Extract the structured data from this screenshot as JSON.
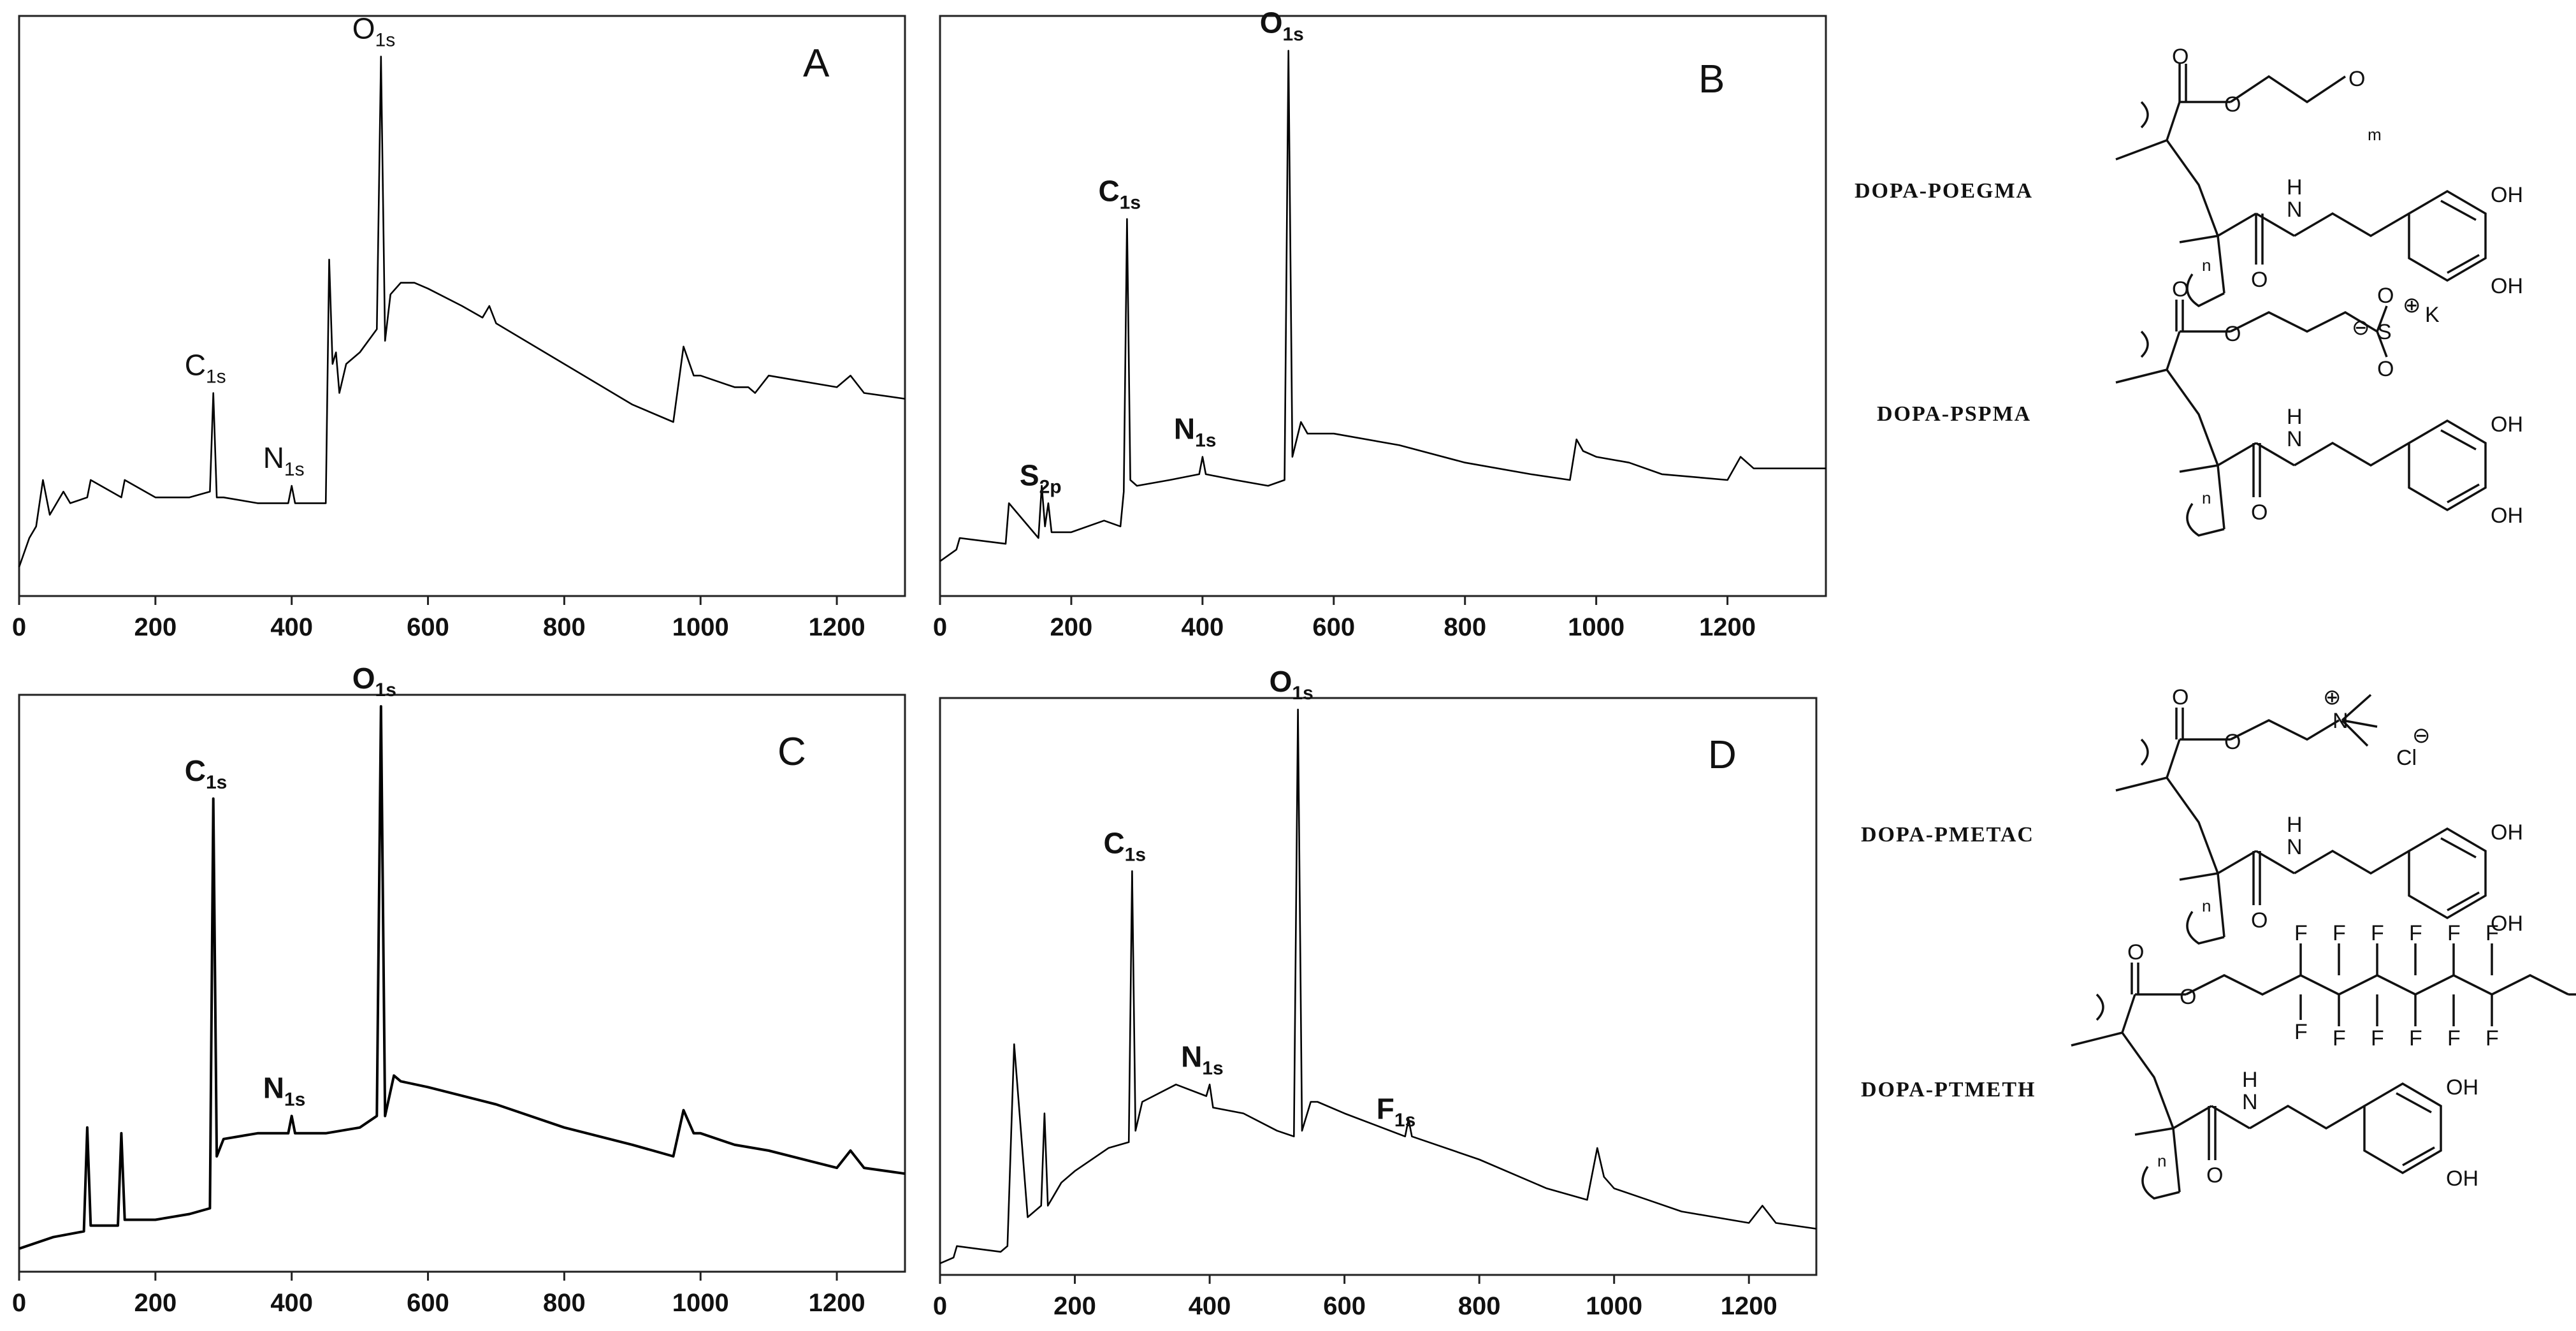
{
  "chart_data": [
    {
      "type": "line",
      "panel": "A",
      "title": "",
      "xlabel": "",
      "ylabel": "",
      "xlim": [
        0,
        1300
      ],
      "xticks": [
        0,
        200,
        400,
        600,
        800,
        1000,
        1200
      ],
      "grid": false,
      "annotations": [
        {
          "main": "C",
          "sub": "1s",
          "x": 285
        },
        {
          "main": "N",
          "sub": "1s",
          "x": 400
        },
        {
          "main": "O",
          "sub": "1s",
          "x": 531
        }
      ],
      "series": [
        {
          "name": "DOPA-POEGMA",
          "x": [
            0,
            15,
            25,
            35,
            45,
            55,
            65,
            75,
            100,
            105,
            150,
            155,
            200,
            250,
            280,
            285,
            290,
            300,
            350,
            395,
            400,
            405,
            450,
            455,
            460,
            465,
            470,
            480,
            500,
            525,
            531,
            537,
            545,
            560,
            580,
            600,
            650,
            680,
            690,
            700,
            800,
            900,
            960,
            975,
            990,
            1000,
            1050,
            1070,
            1080,
            1100,
            1150,
            1200,
            1220,
            1240,
            1300
          ],
          "y": [
            0.05,
            0.1,
            0.12,
            0.2,
            0.14,
            0.16,
            0.18,
            0.16,
            0.17,
            0.2,
            0.17,
            0.2,
            0.17,
            0.17,
            0.18,
            0.35,
            0.17,
            0.17,
            0.16,
            0.16,
            0.19,
            0.16,
            0.16,
            0.58,
            0.4,
            0.42,
            0.35,
            0.4,
            0.42,
            0.46,
            0.93,
            0.44,
            0.52,
            0.54,
            0.54,
            0.53,
            0.5,
            0.48,
            0.5,
            0.47,
            0.4,
            0.33,
            0.3,
            0.43,
            0.38,
            0.38,
            0.36,
            0.36,
            0.35,
            0.38,
            0.37,
            0.36,
            0.38,
            0.35,
            0.34
          ]
        }
      ]
    },
    {
      "type": "line",
      "panel": "B",
      "title": "",
      "xlabel": "",
      "ylabel": "",
      "xlim": [
        0,
        1350
      ],
      "xticks": [
        0,
        200,
        400,
        600,
        800,
        1000,
        1200
      ],
      "grid": false,
      "annotations": [
        {
          "main": "S",
          "sub": "2p",
          "x": 165
        },
        {
          "main": "C",
          "sub": "1s",
          "x": 285
        },
        {
          "main": "N",
          "sub": "1s",
          "x": 400
        },
        {
          "main": "O",
          "sub": "1s",
          "x": 531
        }
      ],
      "series": [
        {
          "name": "DOPA-PSPMA",
          "x": [
            0,
            25,
            30,
            100,
            105,
            150,
            155,
            160,
            165,
            170,
            200,
            250,
            275,
            280,
            285,
            290,
            300,
            350,
            395,
            400,
            405,
            450,
            500,
            525,
            531,
            537,
            550,
            560,
            600,
            700,
            800,
            900,
            960,
            970,
            980,
            1000,
            1050,
            1100,
            1200,
            1220,
            1240,
            1300,
            1350
          ],
          "y": [
            0.06,
            0.08,
            0.1,
            0.09,
            0.16,
            0.1,
            0.19,
            0.12,
            0.16,
            0.11,
            0.11,
            0.13,
            0.12,
            0.18,
            0.65,
            0.2,
            0.19,
            0.2,
            0.21,
            0.24,
            0.21,
            0.2,
            0.19,
            0.2,
            0.94,
            0.24,
            0.3,
            0.28,
            0.28,
            0.26,
            0.23,
            0.21,
            0.2,
            0.27,
            0.25,
            0.24,
            0.23,
            0.21,
            0.2,
            0.24,
            0.22,
            0.22,
            0.22
          ]
        }
      ]
    },
    {
      "type": "line",
      "panel": "C",
      "title": "",
      "xlabel": "",
      "ylabel": "",
      "xlim": [
        0,
        1300
      ],
      "xticks": [
        0,
        200,
        400,
        600,
        800,
        1000,
        1200
      ],
      "grid": false,
      "annotations": [
        {
          "main": "C",
          "sub": "1s",
          "x": 285
        },
        {
          "main": "N",
          "sub": "1s",
          "x": 400
        },
        {
          "main": "O",
          "sub": "1s",
          "x": 531
        }
      ],
      "series": [
        {
          "name": "DOPA-PMETAC",
          "x": [
            0,
            50,
            95,
            100,
            105,
            145,
            150,
            155,
            200,
            250,
            280,
            285,
            290,
            300,
            350,
            395,
            400,
            405,
            450,
            500,
            525,
            531,
            537,
            550,
            560,
            600,
            700,
            800,
            900,
            960,
            975,
            990,
            1000,
            1050,
            1100,
            1200,
            1220,
            1240,
            1300
          ],
          "y": [
            0.04,
            0.06,
            0.07,
            0.25,
            0.08,
            0.08,
            0.24,
            0.09,
            0.09,
            0.1,
            0.11,
            0.82,
            0.2,
            0.23,
            0.24,
            0.24,
            0.27,
            0.24,
            0.24,
            0.25,
            0.27,
            0.98,
            0.27,
            0.34,
            0.33,
            0.32,
            0.29,
            0.25,
            0.22,
            0.2,
            0.28,
            0.24,
            0.24,
            0.22,
            0.21,
            0.18,
            0.21,
            0.18,
            0.17
          ]
        }
      ]
    },
    {
      "type": "line",
      "panel": "D",
      "title": "",
      "xlabel": "",
      "ylabel": "",
      "xlim": [
        0,
        1300
      ],
      "xticks": [
        0,
        200,
        400,
        600,
        800,
        1000,
        1200
      ],
      "grid": false,
      "annotations": [
        {
          "main": "C",
          "sub": "1s",
          "x": 285
        },
        {
          "main": "N",
          "sub": "1s",
          "x": 400
        },
        {
          "main": "O",
          "sub": "1s",
          "x": 531
        },
        {
          "main": "F",
          "sub": "1s",
          "x": 690
        }
      ],
      "series": [
        {
          "name": "DOPA-PTMETH",
          "x": [
            0,
            20,
            25,
            90,
            100,
            110,
            130,
            150,
            155,
            160,
            170,
            180,
            200,
            250,
            280,
            285,
            290,
            300,
            350,
            395,
            400,
            405,
            450,
            500,
            525,
            531,
            537,
            550,
            560,
            600,
            690,
            695,
            700,
            800,
            900,
            960,
            975,
            985,
            1000,
            1050,
            1100,
            1200,
            1220,
            1240,
            1300
          ],
          "y": [
            0.02,
            0.03,
            0.05,
            0.04,
            0.05,
            0.4,
            0.1,
            0.12,
            0.28,
            0.12,
            0.14,
            0.16,
            0.18,
            0.22,
            0.23,
            0.7,
            0.25,
            0.3,
            0.33,
            0.31,
            0.33,
            0.29,
            0.28,
            0.25,
            0.24,
            0.98,
            0.25,
            0.3,
            0.3,
            0.28,
            0.24,
            0.27,
            0.24,
            0.2,
            0.15,
            0.13,
            0.22,
            0.17,
            0.15,
            0.13,
            0.11,
            0.09,
            0.12,
            0.09,
            0.08
          ]
        }
      ]
    }
  ],
  "structures": [
    {
      "name": "DOPA-POEGMA",
      "labels": {
        "o1": "O",
        "o2": "O",
        "o3": "O",
        "m": "m",
        "n": "n",
        "nh": "H",
        "n_atom": "N",
        "oh1": "OH",
        "oh2": "OH"
      }
    },
    {
      "name": "DOPA-PSPMA",
      "labels": {
        "o1": "O",
        "o2": "O",
        "o3": "O",
        "s": "S",
        "so1": "O",
        "so2": "O",
        "plus": "⊕",
        "minus": "⊖",
        "k": "K",
        "n": "n",
        "nh": "H",
        "n_atom": "N",
        "oh1": "OH",
        "oh2": "OH"
      }
    },
    {
      "name": "DOPA-PMETAC",
      "labels": {
        "o1": "O",
        "o2": "O",
        "o3": "O",
        "plus": "⊕",
        "n_plus": "N",
        "cl": "Cl",
        "minus": "⊖",
        "n": "n",
        "nh": "H",
        "n_atom": "N",
        "oh1": "OH",
        "oh2": "OH"
      }
    },
    {
      "name": "DOPA-PTMETH",
      "f": "F",
      "labels": {
        "o1": "O",
        "o2": "O",
        "o3": "O",
        "n": "n",
        "nh": "H",
        "n_atom": "N",
        "oh1": "OH",
        "oh2": "OH"
      }
    }
  ],
  "colors": {
    "line": "#000000",
    "axis": "#222222",
    "text": "#111111"
  }
}
